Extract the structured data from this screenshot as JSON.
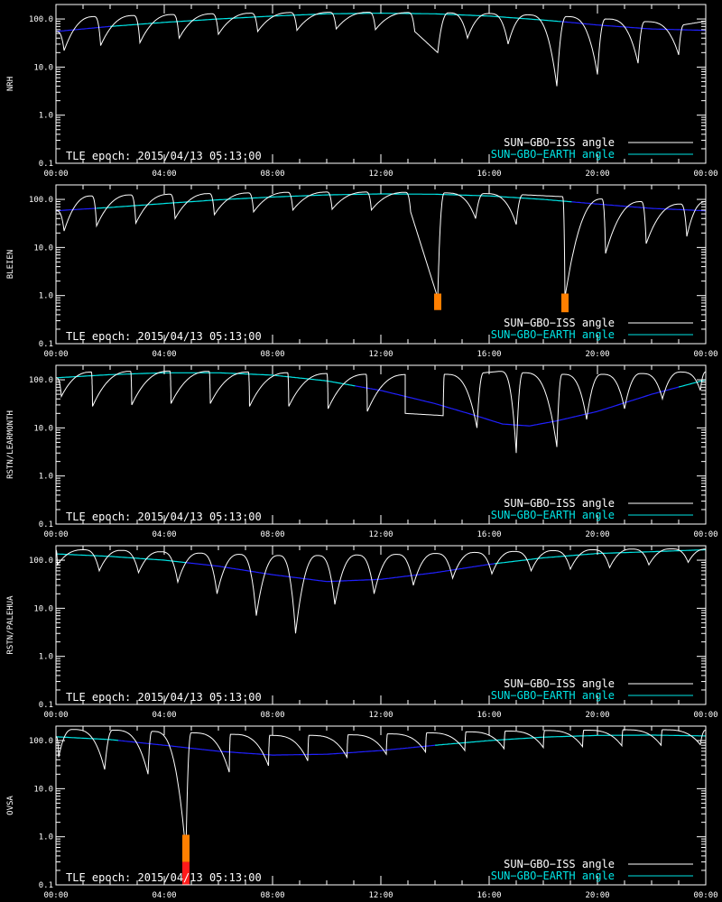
{
  "x_ticks": [
    "00:00",
    "04:00",
    "08:00",
    "12:00",
    "16:00",
    "20:00",
    "00:00"
  ],
  "y_ticks": [
    "0.1",
    "1.0",
    "10.0",
    "100.0"
  ],
  "y_tick_values": [
    0.1,
    1,
    10,
    100
  ],
  "epoch_text": "TLE epoch: 2015/04/13 05:13:00",
  "legend": {
    "iss": "SUN−GBO−ISS angle",
    "earth": "SUN−GBO−EARTH angle"
  },
  "colors": {
    "iss": "#ffffff",
    "earth_visible": "#00e5e5",
    "earth_hidden": "#2020ff",
    "alert": "#ff7f00",
    "alert_red": "#ff1a1a",
    "axis": "#ffffff",
    "background": "#000000"
  },
  "chart_data": [
    {
      "type": "line",
      "station": "NRH",
      "xlim_hours": [
        0,
        24
      ],
      "ylim": [
        0.1,
        200
      ],
      "yscale": "log",
      "legend_position": "bottom-right",
      "earth": {
        "points": [
          [
            0,
            55
          ],
          [
            2,
            70
          ],
          [
            4,
            85
          ],
          [
            6,
            100
          ],
          [
            8,
            115
          ],
          [
            10,
            128
          ],
          [
            12,
            132
          ],
          [
            14,
            128
          ],
          [
            16,
            115
          ],
          [
            18,
            95
          ],
          [
            19,
            85
          ],
          [
            20,
            75
          ],
          [
            22,
            62
          ],
          [
            24,
            58
          ]
        ]
      },
      "earth_visible_ranges": [
        [
          2,
          18.6
        ]
      ],
      "iss": {
        "peaks": [
          [
            0,
            55
          ],
          [
            1.4,
            112
          ],
          [
            2.85,
            118
          ],
          [
            4.3,
            124
          ],
          [
            5.75,
            128
          ],
          [
            7.2,
            132
          ],
          [
            8.65,
            136
          ],
          [
            10.1,
            138
          ],
          [
            11.55,
            138
          ],
          [
            13.0,
            136
          ],
          [
            14.5,
            134
          ],
          [
            16.0,
            130
          ],
          [
            17.4,
            122
          ],
          [
            18.85,
            112
          ],
          [
            20.3,
            100
          ],
          [
            21.75,
            88
          ],
          [
            23.2,
            76
          ],
          [
            24,
            90
          ]
        ],
        "minima": [
          [
            0.3,
            22
          ],
          [
            1.65,
            28
          ],
          [
            3.1,
            32
          ],
          [
            4.55,
            40
          ],
          [
            6.0,
            48
          ],
          [
            7.45,
            55
          ],
          [
            8.9,
            58
          ],
          [
            10.35,
            62
          ],
          [
            11.8,
            60
          ],
          [
            13.25,
            55
          ],
          [
            14.1,
            20
          ],
          [
            15.2,
            40
          ],
          [
            16.7,
            30
          ],
          [
            18.5,
            4.0
          ],
          [
            20.0,
            7.0
          ],
          [
            21.5,
            12
          ],
          [
            23.0,
            18
          ]
        ]
      },
      "alerts": []
    },
    {
      "type": "line",
      "station": "BLEIEN",
      "xlim_hours": [
        0,
        24
      ],
      "ylim": [
        0.1,
        200
      ],
      "yscale": "log",
      "legend_position": "bottom-right",
      "earth": {
        "points": [
          [
            0,
            58
          ],
          [
            2,
            68
          ],
          [
            4,
            82
          ],
          [
            6,
            98
          ],
          [
            8,
            112
          ],
          [
            10,
            124
          ],
          [
            12,
            130
          ],
          [
            14,
            128
          ],
          [
            16,
            118
          ],
          [
            18,
            100
          ],
          [
            20,
            80
          ],
          [
            22,
            65
          ],
          [
            24,
            58
          ]
        ]
      },
      "earth_visible_ranges": [
        [
          1.5,
          19
        ]
      ],
      "iss": {
        "peaks": [
          [
            0,
            58
          ],
          [
            1.3,
            118
          ],
          [
            2.75,
            124
          ],
          [
            4.2,
            128
          ],
          [
            5.65,
            132
          ],
          [
            7.1,
            136
          ],
          [
            8.55,
            140
          ],
          [
            10.0,
            142
          ],
          [
            11.45,
            142
          ],
          [
            12.9,
            140
          ],
          [
            14.35,
            136
          ],
          [
            15.8,
            132
          ],
          [
            17.25,
            125
          ],
          [
            18.7,
            114
          ],
          [
            20.15,
            102
          ],
          [
            21.6,
            90
          ],
          [
            23.05,
            80
          ],
          [
            24,
            90
          ]
        ],
        "minima": [
          [
            0.3,
            22
          ],
          [
            1.5,
            28
          ],
          [
            2.95,
            32
          ],
          [
            4.4,
            40
          ],
          [
            5.85,
            48
          ],
          [
            7.3,
            55
          ],
          [
            8.75,
            60
          ],
          [
            10.2,
            62
          ],
          [
            11.65,
            60
          ],
          [
            13.1,
            55
          ],
          [
            14.1,
            0.9
          ],
          [
            15.5,
            40
          ],
          [
            17.0,
            30
          ],
          [
            18.8,
            0.9
          ],
          [
            20.3,
            7.5
          ],
          [
            21.8,
            12
          ],
          [
            23.3,
            17
          ]
        ]
      },
      "alerts": [
        {
          "hour": 14.1,
          "low": 0.5,
          "high": 1.1,
          "color": "orange"
        },
        {
          "hour": 18.8,
          "low": 0.45,
          "high": 1.1,
          "color": "orange"
        }
      ]
    },
    {
      "type": "line",
      "station": "RSTN/LEARMONTH",
      "xlim_hours": [
        0,
        24
      ],
      "ylim": [
        0.1,
        200
      ],
      "yscale": "log",
      "legend_position": "bottom-right",
      "earth": {
        "points": [
          [
            0,
            110
          ],
          [
            2,
            128
          ],
          [
            4,
            140
          ],
          [
            6,
            140
          ],
          [
            8,
            125
          ],
          [
            10,
            95
          ],
          [
            12,
            60
          ],
          [
            14,
            32
          ],
          [
            15.5,
            18
          ],
          [
            16.5,
            12
          ],
          [
            17.5,
            11
          ],
          [
            18.5,
            14
          ],
          [
            20,
            22
          ],
          [
            22,
            50
          ],
          [
            24,
            100
          ]
        ]
      },
      "earth_visible_ranges": [
        [
          0,
          11
        ],
        [
          23,
          24
        ]
      ],
      "iss": {
        "peaks": [
          [
            0,
            110
          ],
          [
            1.3,
            145
          ],
          [
            2.75,
            150
          ],
          [
            4.2,
            152
          ],
          [
            5.65,
            150
          ],
          [
            7.1,
            145
          ],
          [
            8.55,
            140
          ],
          [
            10.0,
            135
          ],
          [
            11.45,
            130
          ],
          [
            12.9,
            128
          ],
          [
            14.35,
            130
          ],
          [
            15.8,
            140
          ],
          [
            16.4,
            150
          ],
          [
            17.25,
            140
          ],
          [
            18.7,
            130
          ],
          [
            20.15,
            130
          ],
          [
            21.6,
            135
          ],
          [
            23.05,
            145
          ],
          [
            24,
            145
          ]
        ],
        "minima": [
          [
            0.2,
            45
          ],
          [
            1.35,
            28
          ],
          [
            2.8,
            30
          ],
          [
            4.25,
            32
          ],
          [
            5.7,
            32
          ],
          [
            7.15,
            28
          ],
          [
            8.6,
            28
          ],
          [
            10.05,
            25
          ],
          [
            11.5,
            22
          ],
          [
            12.9,
            20
          ],
          [
            14.3,
            18
          ],
          [
            15.55,
            10
          ],
          [
            17.0,
            3.0
          ],
          [
            18.5,
            4.0
          ],
          [
            19.6,
            15
          ],
          [
            21.0,
            25
          ],
          [
            22.4,
            40
          ],
          [
            23.8,
            60
          ]
        ]
      },
      "alerts": []
    },
    {
      "type": "line",
      "station": "RSTN/PALEHUA",
      "xlim_hours": [
        0,
        24
      ],
      "ylim": [
        0.1,
        200
      ],
      "yscale": "log",
      "legend_position": "bottom-right",
      "earth": {
        "points": [
          [
            0,
            135
          ],
          [
            2,
            120
          ],
          [
            4,
            100
          ],
          [
            6,
            75
          ],
          [
            8,
            50
          ],
          [
            10,
            36
          ],
          [
            12,
            40
          ],
          [
            14,
            55
          ],
          [
            16,
            82
          ],
          [
            18,
            112
          ],
          [
            20,
            138
          ],
          [
            22,
            150
          ],
          [
            24,
            165
          ]
        ]
      },
      "earth_visible_ranges": [
        [
          0,
          4.8
        ],
        [
          16.2,
          24
        ]
      ],
      "iss": {
        "peaks": [
          [
            0,
            160
          ],
          [
            1.0,
            165
          ],
          [
            2.4,
            160
          ],
          [
            3.85,
            150
          ],
          [
            5.3,
            140
          ],
          [
            6.75,
            132
          ],
          [
            8.2,
            125
          ],
          [
            9.65,
            125
          ],
          [
            11.1,
            128
          ],
          [
            12.55,
            132
          ],
          [
            14.0,
            138
          ],
          [
            15.45,
            145
          ],
          [
            16.9,
            152
          ],
          [
            18.35,
            158
          ],
          [
            19.8,
            165
          ],
          [
            21.25,
            170
          ],
          [
            22.7,
            172
          ],
          [
            24,
            170
          ]
        ],
        "minima": [
          [
            0.05,
            80
          ],
          [
            1.6,
            60
          ],
          [
            3.05,
            55
          ],
          [
            4.5,
            35
          ],
          [
            5.95,
            20
          ],
          [
            7.4,
            7.0
          ],
          [
            8.85,
            3.0
          ],
          [
            10.3,
            12
          ],
          [
            11.75,
            20
          ],
          [
            13.2,
            30
          ],
          [
            14.65,
            42
          ],
          [
            16.1,
            52
          ],
          [
            17.55,
            60
          ],
          [
            19.0,
            65
          ],
          [
            20.45,
            70
          ],
          [
            21.9,
            80
          ],
          [
            23.35,
            90
          ]
        ]
      },
      "alerts": []
    },
    {
      "type": "line",
      "station": "OVSA",
      "xlim_hours": [
        0,
        24
      ],
      "ylim": [
        0.1,
        200
      ],
      "yscale": "log",
      "legend_position": "bottom-right",
      "earth": {
        "points": [
          [
            0,
            120
          ],
          [
            2,
            105
          ],
          [
            4,
            80
          ],
          [
            6,
            60
          ],
          [
            8,
            50
          ],
          [
            10,
            52
          ],
          [
            12,
            62
          ],
          [
            14,
            80
          ],
          [
            16,
            100
          ],
          [
            18,
            118
          ],
          [
            20,
            128
          ],
          [
            22,
            130
          ],
          [
            24,
            125
          ]
        ]
      },
      "earth_visible_ranges": [
        [
          0,
          2.3
        ],
        [
          14,
          24
        ]
      ],
      "iss": {
        "peaks": [
          [
            0,
            120
          ],
          [
            0.6,
            170
          ],
          [
            2.1,
            165
          ],
          [
            3.55,
            155
          ],
          [
            5.0,
            145
          ],
          [
            6.45,
            135
          ],
          [
            7.9,
            128
          ],
          [
            9.35,
            128
          ],
          [
            10.8,
            132
          ],
          [
            12.25,
            138
          ],
          [
            13.7,
            145
          ],
          [
            15.15,
            152
          ],
          [
            16.6,
            158
          ],
          [
            18.05,
            162
          ],
          [
            19.5,
            165
          ],
          [
            20.95,
            168
          ],
          [
            22.4,
            168
          ],
          [
            24,
            165
          ]
        ],
        "minima": [
          [
            0.1,
            45
          ],
          [
            1.8,
            25
          ],
          [
            3.4,
            20
          ],
          [
            4.8,
            0.45
          ],
          [
            6.4,
            22
          ],
          [
            7.85,
            30
          ],
          [
            9.3,
            38
          ],
          [
            10.75,
            45
          ],
          [
            12.2,
            52
          ],
          [
            13.65,
            58
          ],
          [
            15.1,
            62
          ],
          [
            16.55,
            68
          ],
          [
            18.0,
            72
          ],
          [
            19.45,
            75
          ],
          [
            20.9,
            78
          ],
          [
            22.35,
            80
          ],
          [
            23.8,
            82
          ]
        ]
      },
      "alerts": [
        {
          "hour": 4.8,
          "low": 0.3,
          "high": 1.1,
          "color": "orange"
        },
        {
          "hour": 4.8,
          "low": 0.1,
          "high": 0.3,
          "color": "red"
        }
      ]
    }
  ]
}
